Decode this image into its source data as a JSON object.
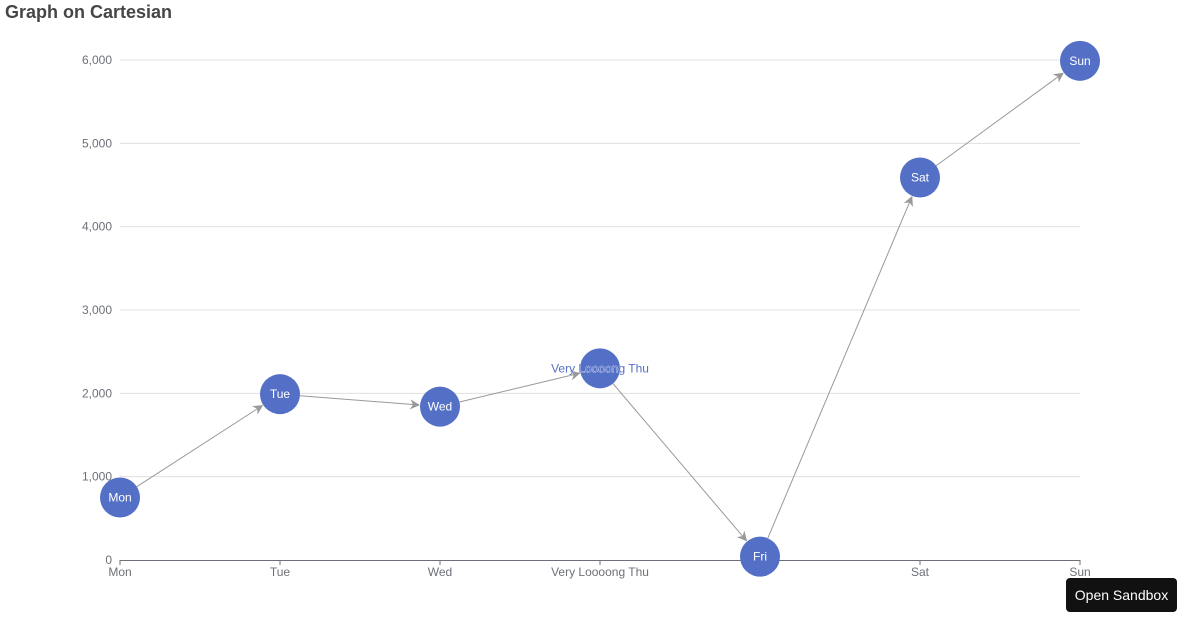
{
  "header": {
    "title": "Graph on Cartesian"
  },
  "actions": {
    "open_sandbox_label": "Open Sandbox"
  },
  "colors": {
    "node": "#5470c6",
    "edge": "#999999",
    "grid": "#e0e0e0",
    "axis": "#6e7079",
    "node_label": "#ffffff"
  },
  "chart_data": {
    "type": "graph",
    "categories": [
      "Mon",
      "Tue",
      "Wed",
      "Very Loooong Thu",
      "Fri",
      "Sat",
      "Sun"
    ],
    "y_ticks": [
      "0",
      "1,000",
      "2,000",
      "3,000",
      "4,000",
      "5,000",
      "6,000"
    ],
    "ylim": [
      0,
      6000
    ],
    "grid": true,
    "nodes": [
      {
        "label": "Mon",
        "value": 750
      },
      {
        "label": "Tue",
        "value": 1990
      },
      {
        "label": "Wed",
        "value": 1840
      },
      {
        "label": "Very Loooong Thu",
        "value": 2300
      },
      {
        "label": "Fri",
        "value": 40
      },
      {
        "label": "Sat",
        "value": 4590
      },
      {
        "label": "Sun",
        "value": 5990
      }
    ],
    "edges": [
      {
        "source": 0,
        "target": 1
      },
      {
        "source": 1,
        "target": 2
      },
      {
        "source": 2,
        "target": 3
      },
      {
        "source": 3,
        "target": 4
      },
      {
        "source": 4,
        "target": 5
      },
      {
        "source": 5,
        "target": 6
      }
    ]
  }
}
